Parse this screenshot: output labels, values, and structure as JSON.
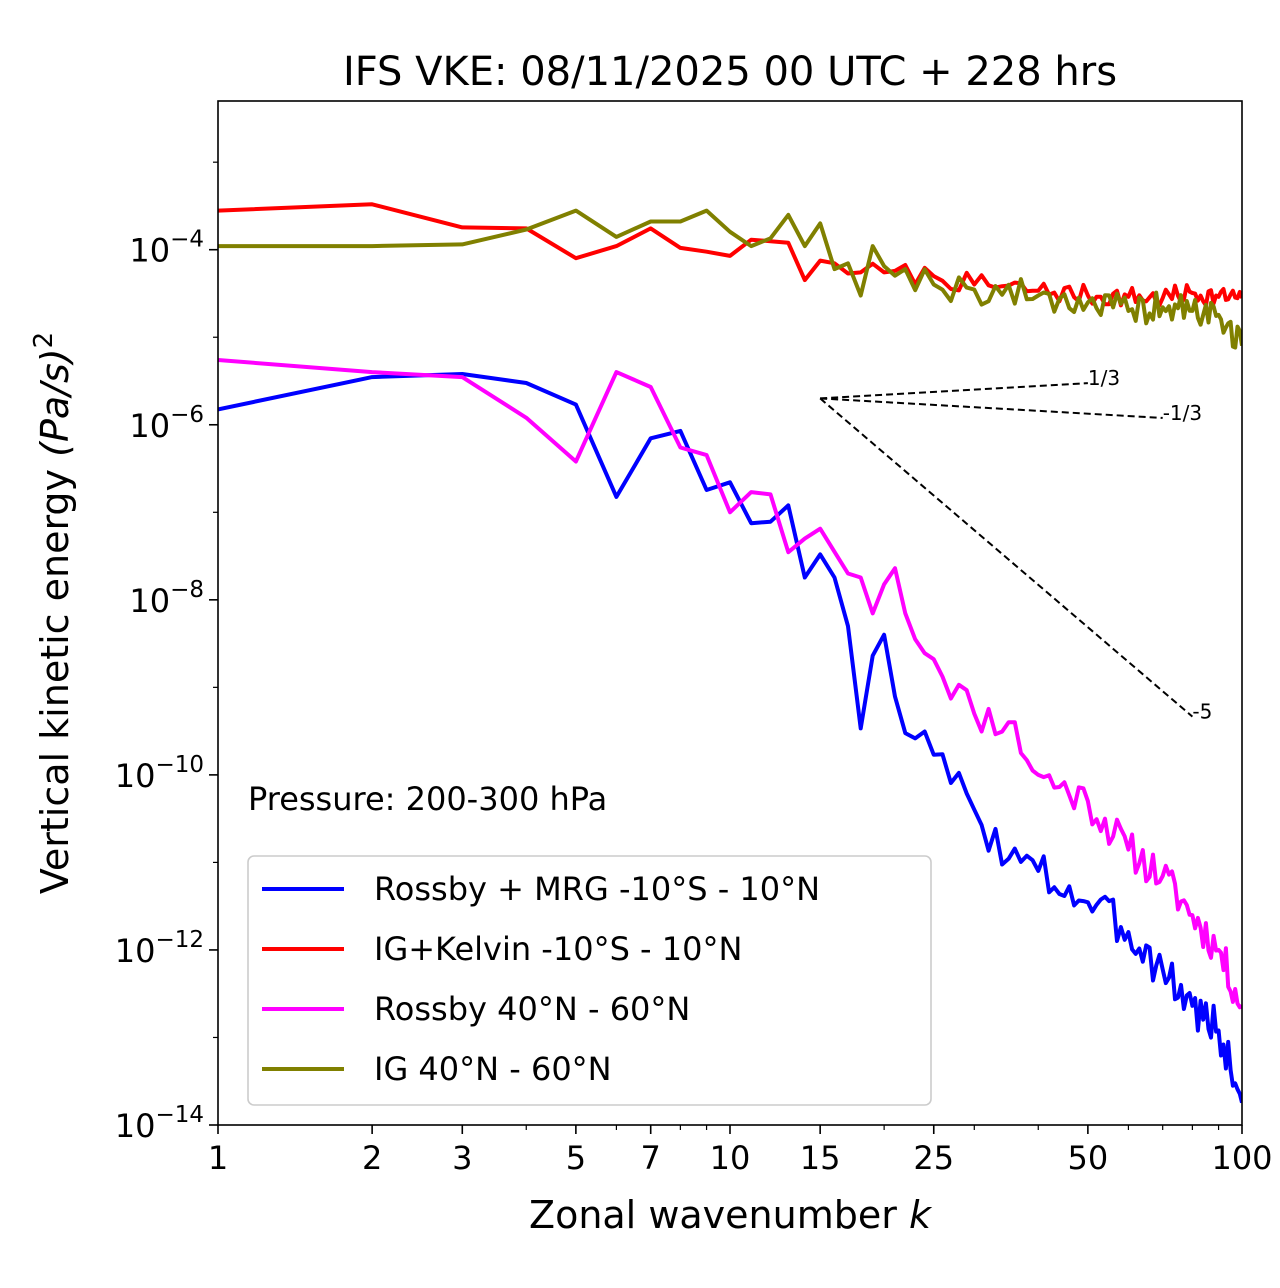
{
  "chart_data": {
    "type": "line",
    "title": "IFS VKE: 08/11/2025 00 UTC + 228 hrs",
    "xlabel": "Zonal wavenumber",
    "xlabel_var": "k",
    "ylabel": "Vertical kinetic energy",
    "ylabel_unit": "(Pa/s)",
    "ylabel_exp": "2",
    "xscale": "log",
    "yscale": "log",
    "xlim": [
      1,
      100
    ],
    "ylim": [
      1e-14,
      0.005
    ],
    "xticks": [
      {
        "value": 1,
        "label": "1"
      },
      {
        "value": 2,
        "label": "2"
      },
      {
        "value": 3,
        "label": "3"
      },
      {
        "value": 5,
        "label": "5"
      },
      {
        "value": 7,
        "label": "7"
      },
      {
        "value": 10,
        "label": "10"
      },
      {
        "value": 15,
        "label": "15"
      },
      {
        "value": 25,
        "label": "25"
      },
      {
        "value": 50,
        "label": "50"
      },
      {
        "value": 100,
        "label": "100"
      }
    ],
    "yticks": [
      {
        "value": 0.0001,
        "base": "10",
        "exp": "−4"
      },
      {
        "value": 1e-06,
        "base": "10",
        "exp": "−6"
      },
      {
        "value": 1e-08,
        "base": "10",
        "exp": "−8"
      },
      {
        "value": 1e-10,
        "base": "10",
        "exp": "−10"
      },
      {
        "value": 1e-12,
        "base": "10",
        "exp": "−12"
      },
      {
        "value": 1e-14,
        "base": "10",
        "exp": "−14"
      }
    ],
    "annotation": "Pressure: 200-300 hPa",
    "legend_position": "lower-left",
    "series": [
      {
        "name": "Rossby + MRG -10°S - 10°N",
        "color": "#0000ff",
        "control": [
          [
            1,
            1.5e-06
          ],
          [
            2,
            3.5e-06
          ],
          [
            3,
            3.8e-06
          ],
          [
            4,
            3e-06
          ],
          [
            5,
            1.7e-06
          ],
          [
            6,
            1.5e-07
          ],
          [
            7,
            7e-07
          ],
          [
            8,
            8.5e-07
          ],
          [
            9,
            1.8e-07
          ],
          [
            10,
            2.2e-07
          ],
          [
            11,
            7.5e-08
          ],
          [
            12,
            7.8e-08
          ],
          [
            13,
            1.2e-07
          ],
          [
            14,
            1.8e-08
          ],
          [
            15,
            3.3e-08
          ],
          [
            16,
            1.8e-08
          ],
          [
            17,
            5e-09
          ],
          [
            18,
            3.4e-10
          ],
          [
            19,
            2.3e-09
          ],
          [
            20,
            4e-09
          ],
          [
            22,
            3e-10
          ],
          [
            25,
            1.7e-10
          ],
          [
            30,
            4e-11
          ],
          [
            35,
            1.1e-11
          ],
          [
            40,
            8e-12
          ],
          [
            50,
            3.5e-12
          ],
          [
            60,
            1.6e-12
          ],
          [
            70,
            6e-13
          ],
          [
            80,
            2.3e-13
          ],
          [
            90,
            1.2e-13
          ],
          [
            100,
            1.8e-14
          ]
        ],
        "jitter": 0.25,
        "seed": 3
      },
      {
        "name": "IG+Kelvin -10°S - 10°N",
        "color": "#ff0000",
        "control": [
          [
            1,
            0.00028
          ],
          [
            2,
            0.00033
          ],
          [
            3,
            0.00018
          ],
          [
            4,
            0.000175
          ],
          [
            5,
            8e-05
          ],
          [
            6,
            0.00011
          ],
          [
            7,
            0.000175
          ],
          [
            8,
            0.000105
          ],
          [
            9,
            9.5e-05
          ],
          [
            10,
            8.5e-05
          ],
          [
            11,
            0.00013
          ],
          [
            12,
            0.000125
          ],
          [
            13,
            0.00012
          ],
          [
            14,
            4.5e-05
          ],
          [
            15,
            7.5e-05
          ],
          [
            16,
            7e-05
          ],
          [
            18,
            5.5e-05
          ],
          [
            20,
            5.5e-05
          ],
          [
            25,
            5e-05
          ],
          [
            30,
            4e-05
          ],
          [
            40,
            3.4e-05
          ],
          [
            50,
            3e-05
          ],
          [
            60,
            2.9e-05
          ],
          [
            70,
            2.8e-05
          ],
          [
            80,
            3.2e-05
          ],
          [
            90,
            2.9e-05
          ],
          [
            100,
            2.8e-05
          ]
        ],
        "jitter": 0.12,
        "seed": 7
      },
      {
        "name": "Rossby 40°N - 60°N",
        "color": "#ff00ff",
        "control": [
          [
            1,
            5.5e-06
          ],
          [
            2,
            4e-06
          ],
          [
            3,
            3.5e-06
          ],
          [
            4,
            1.2e-06
          ],
          [
            5,
            3.8e-07
          ],
          [
            6,
            4e-06
          ],
          [
            7,
            2.7e-06
          ],
          [
            8,
            5.5e-07
          ],
          [
            9,
            4.5e-07
          ],
          [
            10,
            1e-07
          ],
          [
            11,
            1.7e-07
          ],
          [
            12,
            1.6e-07
          ],
          [
            13,
            3.5e-08
          ],
          [
            14,
            5e-08
          ],
          [
            15,
            6.5e-08
          ],
          [
            17,
            2e-08
          ],
          [
            18,
            1.8e-08
          ],
          [
            19,
            7e-09
          ],
          [
            20,
            1.5e-08
          ],
          [
            21,
            2.3e-08
          ],
          [
            22,
            7e-09
          ],
          [
            25,
            2.1e-09
          ],
          [
            30,
            5e-10
          ],
          [
            35,
            4e-10
          ],
          [
            40,
            1e-10
          ],
          [
            50,
            5e-11
          ],
          [
            60,
            1.4e-11
          ],
          [
            70,
            7e-12
          ],
          [
            80,
            2.5e-12
          ],
          [
            90,
            1e-12
          ],
          [
            100,
            2.3e-13
          ]
        ],
        "jitter": 0.22,
        "seed": 11
      },
      {
        "name": "IG 40°N - 60°N",
        "color": "#808000",
        "control": [
          [
            1,
            0.00011
          ],
          [
            2,
            0.00011
          ],
          [
            3,
            0.000115
          ],
          [
            4,
            0.00017
          ],
          [
            5,
            0.00028
          ],
          [
            6,
            0.00014
          ],
          [
            7,
            0.00021
          ],
          [
            8,
            0.00021
          ],
          [
            9,
            0.00028
          ],
          [
            10,
            0.00016
          ],
          [
            11,
            0.00011
          ],
          [
            12,
            0.000135
          ],
          [
            13,
            0.00025
          ],
          [
            14,
            0.00011
          ],
          [
            15,
            0.0002
          ],
          [
            16,
            6e-05
          ],
          [
            17,
            7e-05
          ],
          [
            18,
            3e-05
          ],
          [
            19,
            0.00011
          ],
          [
            20,
            6.5e-05
          ],
          [
            22,
            6e-05
          ],
          [
            25,
            4e-05
          ],
          [
            30,
            3.5e-05
          ],
          [
            40,
            3e-05
          ],
          [
            50,
            2.5e-05
          ],
          [
            60,
            2e-05
          ],
          [
            70,
            2.2e-05
          ],
          [
            80,
            2e-05
          ],
          [
            90,
            1.8e-05
          ],
          [
            100,
            8e-06
          ]
        ],
        "jitter": 0.18,
        "seed": 19
      }
    ],
    "reference_lines": [
      {
        "slope_label": "1/3",
        "slope": 0.3333,
        "x0": 15,
        "y0": 2e-06,
        "x1": 50
      },
      {
        "slope_label": "-1/3",
        "slope": -0.3333,
        "x0": 15,
        "y0": 2e-06,
        "x1": 70
      },
      {
        "slope_label": "-5",
        "slope": -5,
        "x0": 15,
        "y0": 2e-06,
        "x1": 80
      }
    ]
  }
}
